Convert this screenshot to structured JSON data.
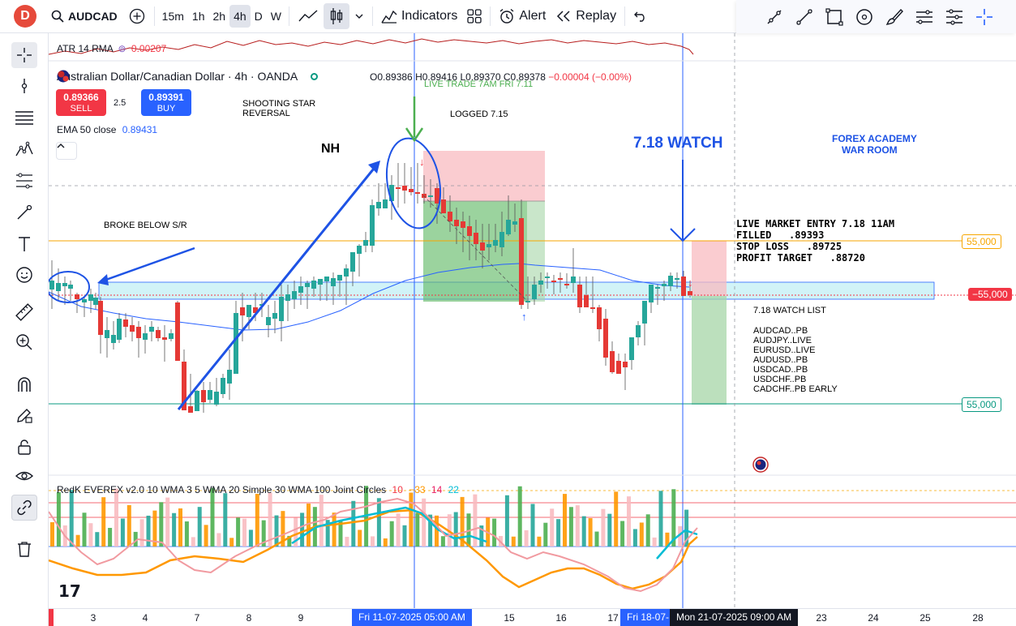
{
  "toolbar": {
    "logo": "D",
    "symbol": "AUDCAD",
    "timeframes": [
      "15m",
      "1h",
      "2h",
      "4h",
      "D",
      "W"
    ],
    "active_timeframe": "4h",
    "indicators_label": "Indicators",
    "alert_label": "Alert",
    "replay_label": "Replay"
  },
  "legend": {
    "atr_label": "ATR 14 RMA",
    "atr_value": "0.00207",
    "title": "Australian Dollar/Canadian Dollar · 4h · OANDA",
    "ohlc_o": "O0.89386",
    "ohlc_h": "H0.89416",
    "ohlc_l": "L0.89370",
    "ohlc_c": "C0.89378",
    "ohlc_change": "−0.00004 (−0.00%)",
    "sell_price": "0.89366",
    "sell_label": "SELL",
    "spread": "2.5",
    "buy_price": "0.89391",
    "buy_label": "BUY",
    "ema_label": "EMA 50 close",
    "ema_value": "0.89431",
    "ind2_label": "RedK EVEREX v2.0 10 WMA 3 5 WMA 20 Simple 30 WMA 100 Joint Circles",
    "ind2_v1": "10",
    "ind2_v2": "−33",
    "ind2_v3": "14",
    "ind2_v4": "22"
  },
  "annotations": {
    "broke_below": "BROKE BELOW S/R",
    "shooting_star_1": "SHOOTING STAR",
    "shooting_star_2": "REVERSAL",
    "nh": "NH",
    "live_trade": "LIVE TRADE 7AM FRI 7.11",
    "logged": "LOGGED 7.15",
    "watch": "7.18 WATCH",
    "academy_1": "FOREX ACADEMY",
    "academy_2": "WAR ROOM",
    "entry_1": "LIVE MARKET ENTRY 7.18 11AM",
    "entry_2": "FILLED   .89393",
    "entry_3": "STOP LOSS   .89725",
    "entry_4": "PROFIT TARGET   .88720",
    "watchlist_title": "7.18 WATCH LIST",
    "watchlist": [
      "AUDCAD..PB",
      "AUDJPY..LIVE",
      "EURUSD..LIVE",
      "AUDUSD..PB",
      "USDCAD..PB",
      "USDCHF..PB",
      "CADCHF..PB EARLY"
    ]
  },
  "price_labels": {
    "upper": "55,000",
    "current": "−55,000",
    "lower": "55,000"
  },
  "time_axis": {
    "ticks": [
      "3",
      "4",
      "7",
      "8",
      "9",
      "15",
      "16",
      "17",
      "23",
      "24",
      "25",
      "28"
    ],
    "crosshair_1": "Fri 11-07-2025   05:00 AM",
    "crosshair_2": "Fri 18-07-",
    "crosshair_3": "Mon 21-07-2025   09:00 AM"
  },
  "colors": {
    "bull": "#26a69a",
    "bear": "#e53935",
    "accent": "#2962ff",
    "sell": "#f23645"
  }
}
